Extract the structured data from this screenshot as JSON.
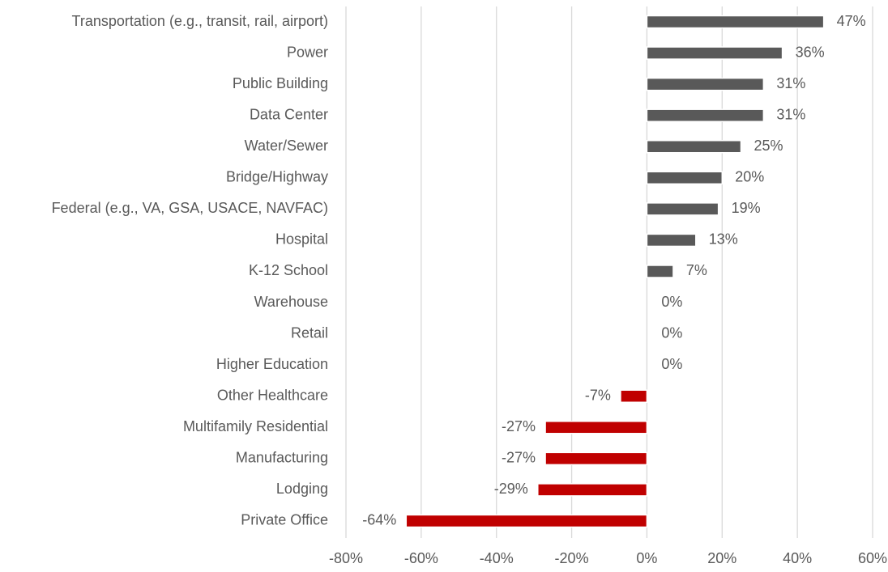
{
  "chart_data": {
    "type": "bar",
    "orientation": "horizontal",
    "categories": [
      "Transportation (e.g., transit, rail, airport)",
      "Power",
      "Public Building",
      "Data Center",
      "Water/Sewer",
      "Bridge/Highway",
      "Federal (e.g., VA, GSA, USACE, NAVFAC)",
      "Hospital",
      "K-12 School",
      "Warehouse",
      "Retail",
      "Higher Education",
      "Other Healthcare",
      "Multifamily Residential",
      "Manufacturing",
      "Lodging",
      "Private Office"
    ],
    "values": [
      47,
      36,
      31,
      31,
      25,
      20,
      19,
      13,
      7,
      0,
      0,
      0,
      -7,
      -27,
      -27,
      -29,
      -64
    ],
    "value_labels": [
      "47%",
      "36%",
      "31%",
      "31%",
      "25%",
      "20%",
      "19%",
      "13%",
      "7%",
      "0%",
      "0%",
      "0%",
      "-7%",
      "-27%",
      "-27%",
      "-29%",
      "-64%"
    ],
    "positive_color": "#595959",
    "negative_color": "#c00000",
    "xlim": [
      -80,
      60
    ],
    "xticks": [
      {
        "value": -80,
        "label": "-80%"
      },
      {
        "value": -60,
        "label": "-60%"
      },
      {
        "value": -40,
        "label": "-40%"
      },
      {
        "value": -20,
        "label": "-20%"
      },
      {
        "value": 0,
        "label": "0%"
      },
      {
        "value": 20,
        "label": "20%"
      },
      {
        "value": 40,
        "label": "40%"
      },
      {
        "value": 60,
        "label": "60%"
      }
    ],
    "grid": true
  }
}
